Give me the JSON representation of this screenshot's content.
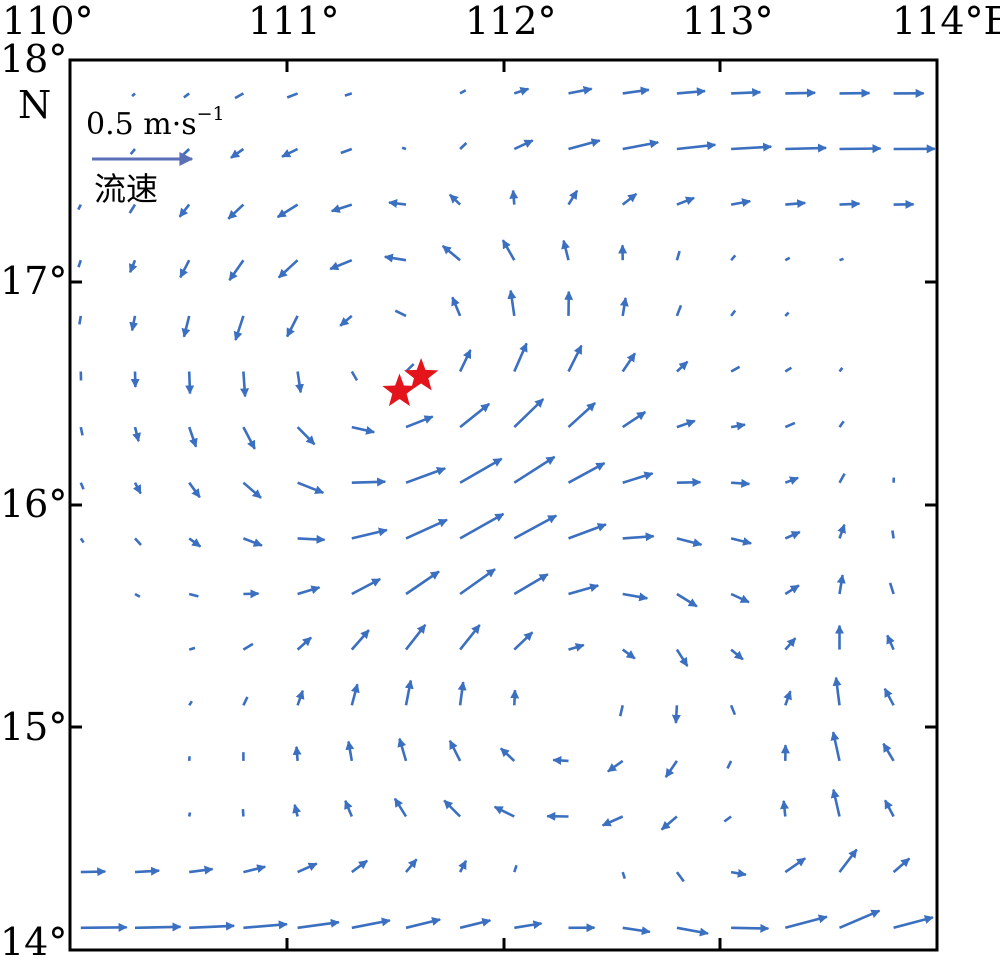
{
  "map": {
    "lon_range": [
      110,
      114
    ],
    "lat_range": [
      14,
      18
    ],
    "lon_ticks": [
      {
        "value": 110,
        "label": "110°"
      },
      {
        "value": 111,
        "label": "111°"
      },
      {
        "value": 112,
        "label": "112°"
      },
      {
        "value": 113,
        "label": "113°"
      },
      {
        "value": 114,
        "label": "114°E"
      }
    ],
    "lat_ticks": [
      {
        "value": 18,
        "label": "18°"
      },
      {
        "value": 17,
        "label": "17°"
      },
      {
        "value": 16,
        "label": "16°"
      },
      {
        "value": 15,
        "label": "15°"
      },
      {
        "value": 14,
        "label": "14°"
      }
    ],
    "lat_unit_label": "N",
    "vector_color": "#3b6fc0",
    "legend_arrow_color": "#5a6fb5",
    "marker_color": "#e3151b",
    "legend": {
      "speed_label": "0.5 m·s",
      "speed_exponent": "−1",
      "name": "流速",
      "reference_speed_ms": 0.5
    },
    "markers": [
      {
        "lon": 111.52,
        "lat": 16.51
      },
      {
        "lon": 111.62,
        "lat": 16.58
      }
    ]
  }
}
